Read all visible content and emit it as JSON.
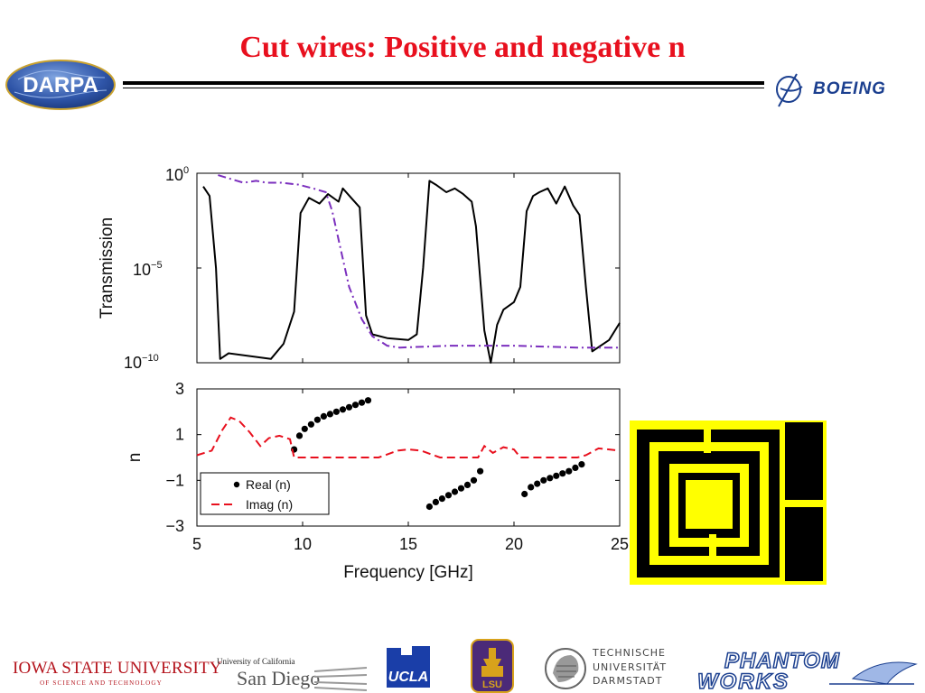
{
  "slide": {
    "title": "Cut wires: Positive and negative n"
  },
  "logos": {
    "darpa": "DARPA",
    "boeing": "BOEING",
    "isu_name": "IOWA STATE UNIVERSITY",
    "isu_sub": "OF SCIENCE AND TECHNOLOGY",
    "ucsd_small": "University of California",
    "ucsd_big": "San Diego",
    "ucla": "UCLA",
    "lsu": "LSU",
    "tud_line1": "TECHNISCHE",
    "tud_line2": "UNIVERSITÄT",
    "tud_line3": "DARMSTADT",
    "phantom_line1": "PHANTOM",
    "phantom_line2": "WORKS"
  },
  "colors": {
    "title": "#e8101e",
    "transmission_a": "#000000",
    "transmission_b": "#7b2fbe",
    "real_n": "#000000",
    "imag_n": "#e8101e",
    "sample_yellow": "#ffff00"
  },
  "chart_data": [
    {
      "type": "line",
      "yscale": "log",
      "ylabel": "Transmission",
      "xlim": [
        5,
        25
      ],
      "ylim": [
        1e-10,
        1
      ],
      "yticks": [
        "10^0",
        "10^-5",
        "10^-10"
      ],
      "grid": false,
      "series": [
        {
          "style": "solid",
          "color": "#000000",
          "x": [
            5.3,
            5.6,
            5.9,
            6.1,
            6.5,
            8.5,
            9.1,
            9.6,
            9.9,
            10.3,
            10.8,
            11.2,
            11.7,
            11.9,
            12.3,
            12.7,
            13.0,
            13.3,
            14.0,
            15.0,
            15.4,
            15.7,
            16.0,
            16.3,
            16.8,
            17.2,
            17.6,
            18.0,
            18.2,
            18.6,
            18.9,
            19.2,
            19.5,
            20.0,
            20.3,
            20.6,
            20.9,
            21.2,
            21.6,
            22.0,
            22.4,
            22.8,
            23.1,
            23.4,
            23.7,
            24.5,
            25.0
          ],
          "y": [
            -0.7,
            -1.2,
            -5,
            -9.8,
            -9.5,
            -9.8,
            -9,
            -7.3,
            -2.1,
            -1.3,
            -1.6,
            -1.1,
            -1.5,
            -0.8,
            -1.3,
            -1.8,
            -7.5,
            -8.5,
            -8.7,
            -8.8,
            -8.5,
            -5,
            -0.4,
            -0.6,
            -1.0,
            -0.8,
            -1.1,
            -1.5,
            -2.8,
            -8.3,
            -10,
            -8.0,
            -7.2,
            -6.8,
            -6.0,
            -2.0,
            -1.2,
            -1.0,
            -0.8,
            -1.6,
            -0.7,
            -1.7,
            -2.2,
            -6.0,
            -9.4,
            -8.8,
            -7.9
          ]
        },
        {
          "style": "dashdot",
          "color": "#7b2fbe",
          "x": [
            6.0,
            7.2,
            7.8,
            8.3,
            9.0,
            9.8,
            10.5,
            11.1,
            11.4,
            11.8,
            12.2,
            12.8,
            13.3,
            14.0,
            14.6,
            17.0,
            20.0,
            23.0,
            25.0
          ],
          "y": [
            -0.1,
            -0.5,
            -0.4,
            -0.5,
            -0.5,
            -0.6,
            -0.8,
            -1.0,
            -2.0,
            -4.0,
            -6.0,
            -7.7,
            -8.6,
            -9.1,
            -9.2,
            -9.1,
            -9.1,
            -9.2,
            -9.2
          ]
        }
      ]
    },
    {
      "type": "line",
      "ylabel": "n",
      "xlabel": "Frequency [GHz]",
      "xlim": [
        5,
        25
      ],
      "ylim": [
        -3,
        3
      ],
      "xticks": [
        5,
        10,
        15,
        20,
        25
      ],
      "yticks": [
        3,
        1,
        -1,
        -3
      ],
      "legend_position": "bottom-left",
      "series": [
        {
          "name": "Real (n)",
          "style": "dots",
          "color": "#000000",
          "x": [
            9.6,
            9.85,
            10.1,
            10.4,
            10.7,
            11.0,
            11.3,
            11.6,
            11.9,
            12.2,
            12.5,
            12.8,
            13.1,
            16.0,
            16.3,
            16.6,
            16.9,
            17.2,
            17.5,
            17.8,
            18.1,
            18.4,
            20.5,
            20.8,
            21.1,
            21.4,
            21.7,
            22.0,
            22.3,
            22.6,
            22.9,
            23.2
          ],
          "y": [
            0.35,
            0.95,
            1.25,
            1.45,
            1.65,
            1.8,
            1.9,
            2.0,
            2.1,
            2.2,
            2.3,
            2.4,
            2.5,
            -2.15,
            -1.95,
            -1.8,
            -1.65,
            -1.5,
            -1.35,
            -1.2,
            -1.0,
            -0.6,
            -1.6,
            -1.3,
            -1.15,
            -1.0,
            -0.9,
            -0.8,
            -0.7,
            -0.6,
            -0.45,
            -0.3
          ]
        },
        {
          "name": "Imag (n)",
          "style": "dashed",
          "color": "#e8101e",
          "x": [
            5.0,
            5.7,
            6.2,
            6.6,
            7.0,
            7.5,
            8.0,
            8.4,
            8.9,
            9.4,
            9.6,
            10.0,
            12.0,
            13.6,
            14.5,
            15.0,
            15.6,
            16.5,
            17.5,
            18.3,
            18.6,
            19.0,
            19.5,
            20.0,
            20.3,
            20.7,
            22.0,
            23.0,
            23.4,
            24.0,
            25.0
          ],
          "y": [
            0.1,
            0.3,
            1.2,
            1.75,
            1.6,
            1.1,
            0.5,
            0.85,
            0.95,
            0.8,
            0.0,
            0.0,
            0.0,
            0.0,
            0.3,
            0.35,
            0.3,
            0.0,
            0.0,
            0.0,
            0.5,
            0.2,
            0.45,
            0.35,
            0.0,
            0.0,
            0.0,
            0.0,
            0.1,
            0.4,
            0.3
          ]
        }
      ]
    }
  ]
}
